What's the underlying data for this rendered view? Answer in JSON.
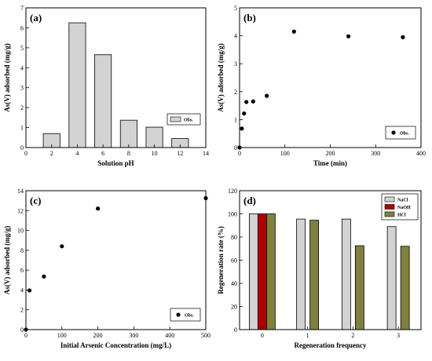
{
  "colors": {
    "bar_light": "#d3d3d3",
    "bar_red": "#b00000",
    "bar_olive": "#808040",
    "marker": "#000000"
  },
  "chart_data": [
    {
      "type": "bar",
      "panel": "(a)",
      "xlabel": "Solution pH",
      "ylabel": "As(V) adsorbed (mg/g)",
      "xlim": [
        0,
        14
      ],
      "ylim": [
        0,
        7
      ],
      "xticks": [
        0,
        2,
        4,
        6,
        8,
        10,
        12,
        14
      ],
      "yticks": [
        0,
        1,
        2,
        3,
        4,
        5,
        6,
        7
      ],
      "x": [
        2,
        4,
        6,
        8,
        10,
        12
      ],
      "values": [
        0.7,
        6.25,
        4.65,
        1.37,
        1.02,
        0.45
      ],
      "series": [
        {
          "name": "Obs."
        }
      ],
      "legend": "right",
      "grid": false
    },
    {
      "type": "scatter",
      "panel": "(b)",
      "xlabel": "Time (min)",
      "ylabel": "As(V) adsorbed (mg/g)",
      "xlim": [
        0,
        400
      ],
      "ylim": [
        0,
        5
      ],
      "xticks": [
        0,
        100,
        200,
        300,
        400
      ],
      "yticks": [
        0,
        1,
        2,
        3,
        4,
        5
      ],
      "x": [
        0,
        5,
        10,
        15,
        30,
        60,
        120,
        240,
        360
      ],
      "y": [
        0,
        0.68,
        1.22,
        1.63,
        1.65,
        1.85,
        4.15,
        3.98,
        3.95
      ],
      "series": [
        {
          "name": "Obs."
        }
      ],
      "legend": "bottom-right",
      "grid": false
    },
    {
      "type": "scatter",
      "panel": "(c)",
      "xlabel": "Initial Arsenic Concentration (mg/L)",
      "ylabel": "As(V) adsorbed (mg/g)",
      "xlim": [
        0,
        500
      ],
      "ylim": [
        0,
        14
      ],
      "xticks": [
        0,
        100,
        200,
        300,
        400,
        500
      ],
      "yticks": [
        0,
        2,
        4,
        6,
        8,
        10,
        12,
        14
      ],
      "x": [
        0,
        10,
        50,
        100,
        200,
        500
      ],
      "y": [
        0,
        3.95,
        5.35,
        8.4,
        12.2,
        13.25
      ],
      "series": [
        {
          "name": "Obs."
        }
      ],
      "legend": "bottom-right",
      "grid": false
    },
    {
      "type": "bar",
      "panel": "(d)",
      "xlabel": "Regeneration frequency",
      "ylabel": "Regeneration rate (%)",
      "xlim": [
        -0.5,
        3.5
      ],
      "ylim": [
        0,
        120
      ],
      "categories": [
        "0",
        "1",
        "2",
        "3"
      ],
      "yticks": [
        0,
        20,
        40,
        60,
        80,
        100,
        120
      ],
      "series": [
        {
          "name": "NaCl",
          "values": [
            100,
            95.5,
            95.5,
            89
          ]
        },
        {
          "name": "NaOH",
          "values": [
            100,
            null,
            null,
            null
          ]
        },
        {
          "name": "HCl",
          "values": [
            100,
            94.5,
            72.5,
            72
          ]
        }
      ],
      "legend": "top-right",
      "grid": false
    }
  ]
}
